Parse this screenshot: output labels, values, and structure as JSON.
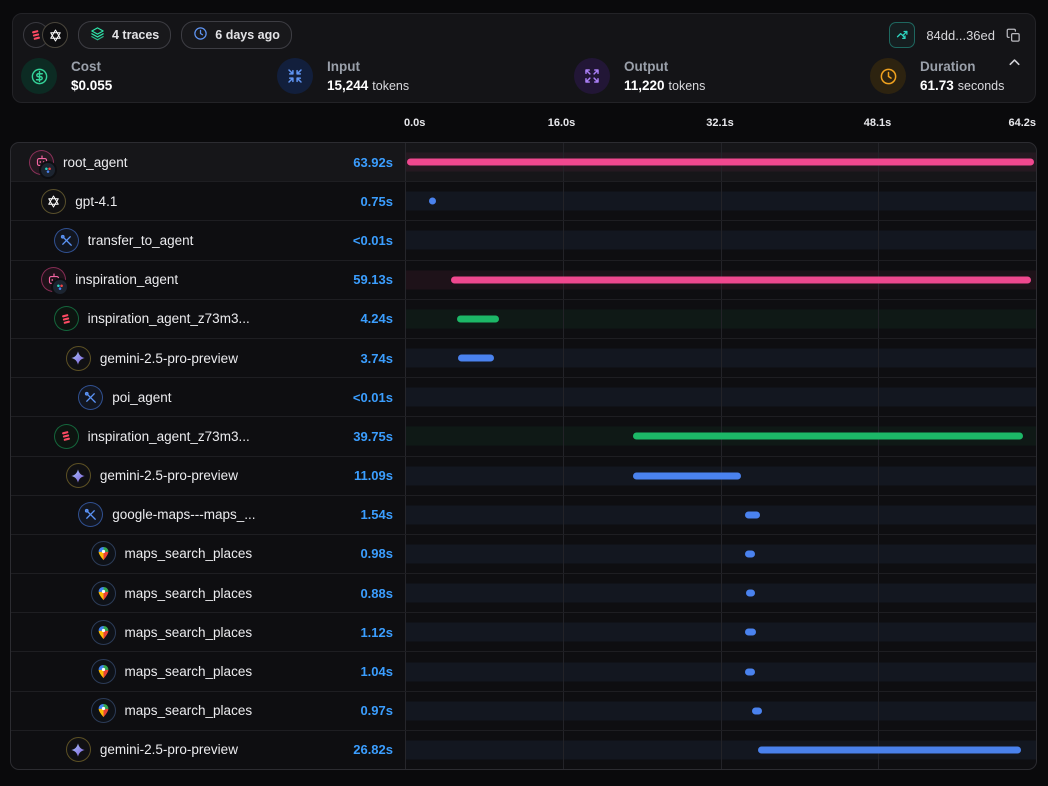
{
  "header": {
    "logos": [
      {
        "icon": "langfuse-logo-icon",
        "color": "#fb4a63"
      },
      {
        "icon": "openai-logo-icon",
        "color": "#ffffff"
      }
    ],
    "badges": [
      {
        "icon": "layers-icon",
        "label": "4 traces"
      },
      {
        "icon": "clock-icon",
        "label": "6 days ago"
      }
    ],
    "trace_id": "84dd...36ed",
    "stats": [
      {
        "label": "Cost",
        "value": "$0.055",
        "unit": "",
        "icon": "dollar-circle-icon",
        "accent": "#34d399",
        "icon_bg": "#0c2b23"
      },
      {
        "label": "Input",
        "value": "15,244",
        "unit": "tokens",
        "icon": "arrows-in-icon",
        "accent": "#5f94f2",
        "icon_bg": "#121f3c"
      },
      {
        "label": "Output",
        "value": "11,220",
        "unit": "tokens",
        "icon": "arrows-out-icon",
        "accent": "#a97ef5",
        "icon_bg": "#221636"
      },
      {
        "label": "Duration",
        "value": "61.73",
        "unit": "seconds",
        "icon": "clock-icon",
        "accent": "#f0a21f",
        "icon_bg": "#2d2310"
      }
    ]
  },
  "timeline": {
    "total_seconds": 64.2,
    "axis_ticks": [
      {
        "label": "0.0s",
        "t": 0
      },
      {
        "label": "16.0s",
        "t": 16.0
      },
      {
        "label": "32.1s",
        "t": 32.1
      },
      {
        "label": "48.1s",
        "t": 48.1
      },
      {
        "label": "64.2s",
        "t": 64.2
      }
    ],
    "gridline_seconds": [
      16.0,
      32.1,
      48.1
    ],
    "duration_text_color": "#3b9eff",
    "bar_colors": {
      "pink": "#f0488f",
      "blue": "#4a82ee",
      "green": "#1cb867"
    },
    "track_tints": {
      "pink": "rgba(240,72,143,0.07)",
      "blue": "rgba(90,140,246,0.07)",
      "green": "rgba(34,197,94,0.06)"
    },
    "rows": [
      {
        "name": "root_agent",
        "icon": "agent-robot-icon",
        "indent": 0,
        "duration_label": "63.92s",
        "color": "pink",
        "start": 0.1,
        "seconds": 63.92,
        "selected": true
      },
      {
        "name": "gpt-4.1",
        "icon": "openai-icon",
        "indent": 1,
        "duration_label": "0.75s",
        "color": "blue",
        "start": 2.3,
        "seconds": 0.75
      },
      {
        "name": "transfer_to_agent",
        "icon": "tools-icon",
        "indent": 2,
        "duration_label": "<0.01s",
        "color": "blue",
        "start": null,
        "seconds": 0
      },
      {
        "name": "inspiration_agent",
        "icon": "agent-robot-icon",
        "indent": 1,
        "duration_label": "59.13s",
        "color": "pink",
        "start": 4.6,
        "seconds": 59.13
      },
      {
        "name": "inspiration_agent_z73m3...",
        "icon": "langfuse-icon",
        "indent": 2,
        "duration_label": "4.24s",
        "color": "green",
        "start": 5.2,
        "seconds": 4.24
      },
      {
        "name": "gemini-2.5-pro-preview",
        "icon": "gemini-icon",
        "indent": 3,
        "duration_label": "3.74s",
        "color": "blue",
        "start": 5.25,
        "seconds": 3.74
      },
      {
        "name": "poi_agent",
        "icon": "tools-icon",
        "indent": 4,
        "duration_label": "<0.01s",
        "color": "blue",
        "start": null,
        "seconds": 0
      },
      {
        "name": "inspiration_agent_z73m3...",
        "icon": "langfuse-icon",
        "indent": 2,
        "duration_label": "39.75s",
        "color": "green",
        "start": 23.1,
        "seconds": 39.75
      },
      {
        "name": "gemini-2.5-pro-preview",
        "icon": "gemini-icon",
        "indent": 3,
        "duration_label": "11.09s",
        "color": "blue",
        "start": 23.1,
        "seconds": 11.09
      },
      {
        "name": "google-maps---maps_...",
        "icon": "tools-icon",
        "indent": 4,
        "duration_label": "1.54s",
        "color": "blue",
        "start": 34.5,
        "seconds": 1.54
      },
      {
        "name": "maps_search_places",
        "icon": "maps-pin-icon",
        "indent": 5,
        "duration_label": "0.98s",
        "color": "blue",
        "start": 34.55,
        "seconds": 0.98
      },
      {
        "name": "maps_search_places",
        "icon": "maps-pin-icon",
        "indent": 5,
        "duration_label": "0.88s",
        "color": "blue",
        "start": 34.65,
        "seconds": 0.88
      },
      {
        "name": "maps_search_places",
        "icon": "maps-pin-icon",
        "indent": 5,
        "duration_label": "1.12s",
        "color": "blue",
        "start": 34.5,
        "seconds": 1.12
      },
      {
        "name": "maps_search_places",
        "icon": "maps-pin-icon",
        "indent": 5,
        "duration_label": "1.04s",
        "color": "blue",
        "start": 34.55,
        "seconds": 1.04
      },
      {
        "name": "maps_search_places",
        "icon": "maps-pin-icon",
        "indent": 5,
        "duration_label": "0.97s",
        "color": "blue",
        "start": 35.3,
        "seconds": 0.97
      },
      {
        "name": "gemini-2.5-pro-preview",
        "icon": "gemini-icon",
        "indent": 3,
        "duration_label": "26.82s",
        "color": "blue",
        "start": 35.9,
        "seconds": 26.82
      }
    ]
  }
}
